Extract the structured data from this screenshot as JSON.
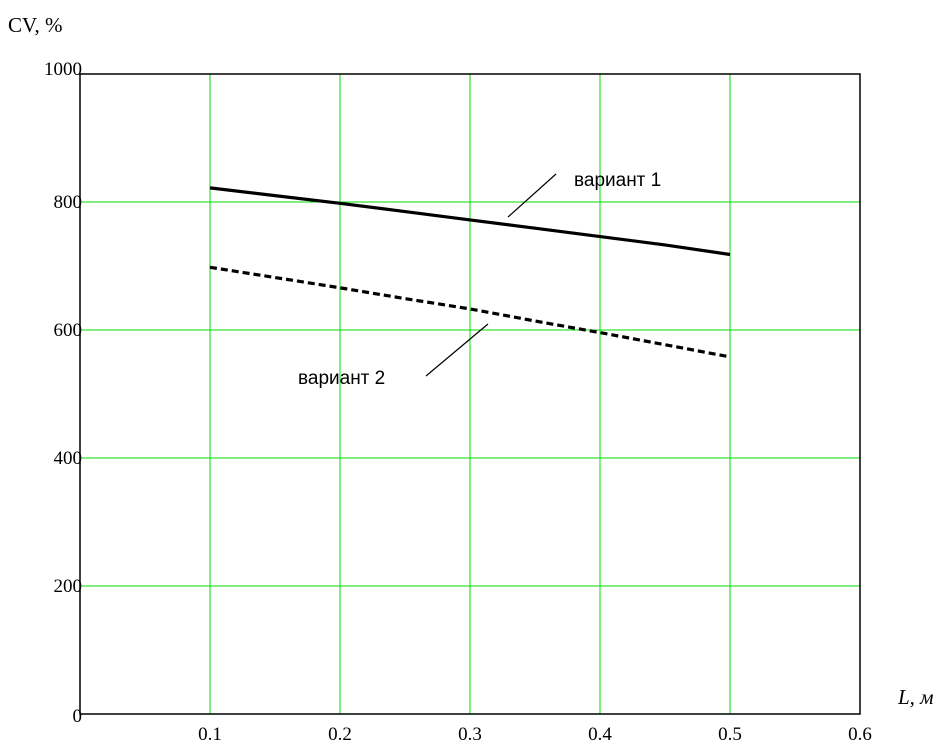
{
  "chart_data": {
    "type": "line",
    "title": "",
    "ylabel": "CV, %",
    "xlabel": "L, м",
    "xlim": [
      0,
      0.6
    ],
    "ylim": [
      0,
      1000
    ],
    "x_ticks": [
      "0.1",
      "0.2",
      "0.3",
      "0.4",
      "0.5",
      "0.6"
    ],
    "y_ticks": [
      "0",
      "200",
      "400",
      "600",
      "800",
      "1000"
    ],
    "x_tick_values": [
      0.1,
      0.2,
      0.3,
      0.4,
      0.5,
      0.6
    ],
    "y_tick_values": [
      0,
      200,
      400,
      600,
      800,
      1000
    ],
    "grid": true,
    "grid_color": "#00dd00",
    "series": [
      {
        "name": "вариант 1",
        "style": "solid",
        "color": "#000000",
        "x": [
          0.1,
          0.15,
          0.2,
          0.25,
          0.3,
          0.35,
          0.4,
          0.45,
          0.5
        ],
        "y": [
          822,
          810,
          798,
          785,
          772,
          759,
          746,
          733,
          718
        ]
      },
      {
        "name": "вариант 2",
        "style": "dashed",
        "color": "#000000",
        "x": [
          0.1,
          0.15,
          0.2,
          0.25,
          0.3,
          0.35,
          0.4,
          0.45,
          0.5
        ],
        "y": [
          698,
          682,
          666,
          649,
          633,
          614,
          596,
          577,
          558
        ]
      }
    ]
  }
}
